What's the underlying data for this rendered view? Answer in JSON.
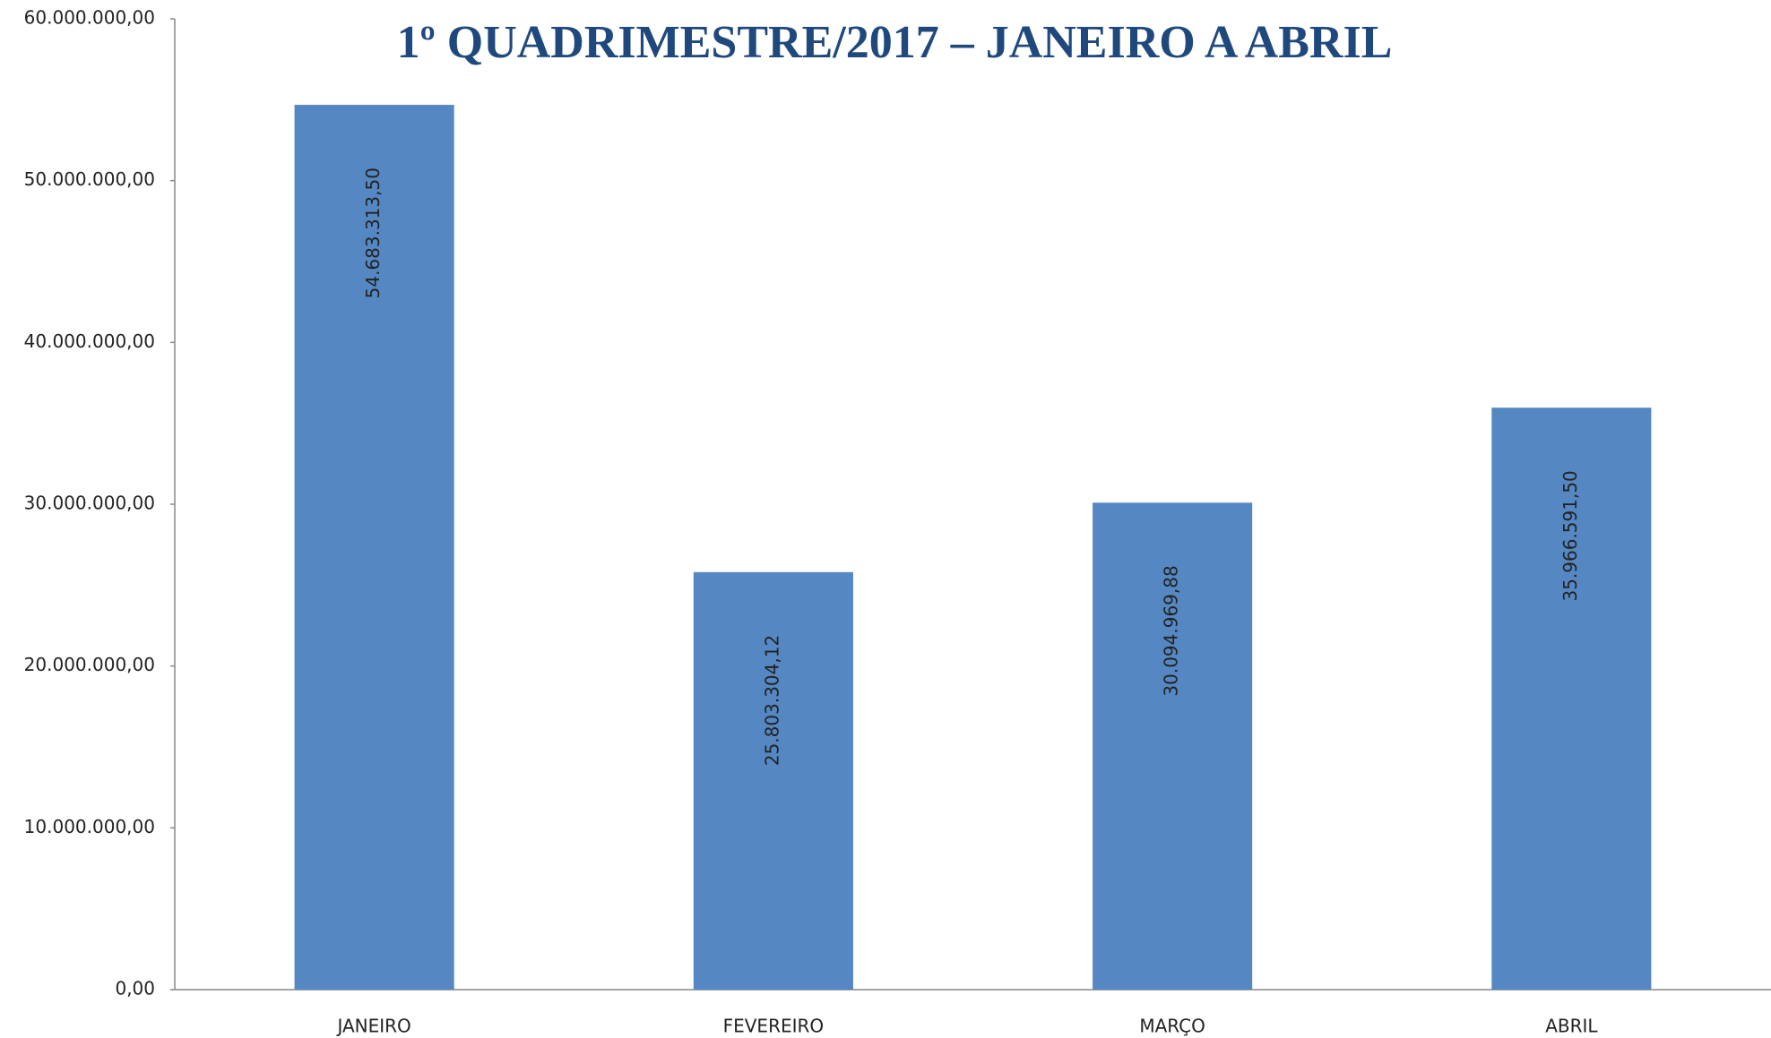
{
  "chart_data": {
    "type": "bar",
    "title": "1º QUADRIMESTRE/2017 – JANEIRO A ABRIL",
    "categories": [
      "JANEIRO",
      "FEVEREIRO",
      "MARÇO",
      "ABRIL"
    ],
    "values": [
      54683313.5,
      25803304.12,
      30094969.88,
      35966591.5
    ],
    "value_labels": [
      "54.683.313,50",
      "25.803.304,12",
      "30.094.969,88",
      "35.966.591,50"
    ],
    "color": "#5588c2",
    "ylim": [
      0,
      60000000
    ],
    "yticks": [
      {
        "value": 0,
        "label": "0,00"
      },
      {
        "value": 10000000,
        "label": "10.000.000,00"
      },
      {
        "value": 20000000,
        "label": "20.000.000,00"
      },
      {
        "value": 30000000,
        "label": "30.000.000,00"
      },
      {
        "value": 40000000,
        "label": "40.000.000,00"
      },
      {
        "value": 50000000,
        "label": "50.000.000,00"
      },
      {
        "value": 60000000,
        "label": "60.000.000,00"
      }
    ],
    "grid": false
  }
}
